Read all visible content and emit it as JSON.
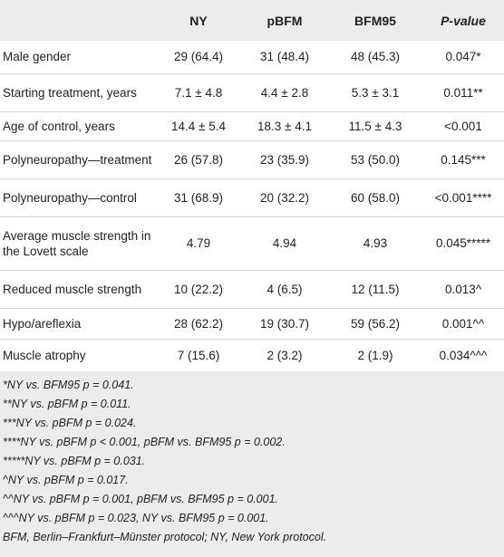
{
  "table": {
    "headers": [
      "",
      "NY",
      "pBFM",
      "BFM95",
      "P-value"
    ],
    "rows": [
      {
        "label": "Male gender",
        "ny": "29 (64.4)",
        "pbfm": "31 (48.4)",
        "bfm95": "48 (45.3)",
        "p": "0.047*"
      },
      {
        "label": "Starting treatment, years",
        "ny": "7.1 ± 4.8",
        "pbfm": "4.4 ± 2.8",
        "bfm95": "5.3 ± 3.1",
        "p": "0.011**"
      },
      {
        "label": "Age of control, years",
        "ny": "14.4 ± 5.4",
        "pbfm": "18.3 ± 4.1",
        "bfm95": "11.5 ± 4.3",
        "p": "<0.001"
      },
      {
        "label": "Polyneuropathy—treatment",
        "ny": "26 (57.8)",
        "pbfm": "23 (35.9)",
        "bfm95": "53 (50.0)",
        "p": "0.145***"
      },
      {
        "label": "Polyneuropathy—control",
        "ny": "31 (68.9)",
        "pbfm": "20 (32.2)",
        "bfm95": "60 (58.0)",
        "p": "<0.001****"
      },
      {
        "label": "Average muscle strength in the Lovett scale",
        "ny": "4.79",
        "pbfm": "4.94",
        "bfm95": "4.93",
        "p": "0.045*****"
      },
      {
        "label": "Reduced muscle strength",
        "ny": "10 (22.2)",
        "pbfm": "4 (6.5)",
        "bfm95": "12 (11.5)",
        "p": "0.013^"
      },
      {
        "label": "Hypo/areflexia",
        "ny": "28 (62.2)",
        "pbfm": "19 (30.7)",
        "bfm95": "59 (56.2)",
        "p": "0.001^^"
      },
      {
        "label": "Muscle atrophy",
        "ny": "7 (15.6)",
        "pbfm": "2 (3.2)",
        "bfm95": "2 (1.9)",
        "p": "0.034^^^"
      }
    ]
  },
  "footnotes": [
    "*NY vs. BFM95 p = 0.041.",
    "**NY vs. pBFM p = 0.011.",
    "***NY vs. pBFM p = 0.024.",
    "****NY vs. pBFM p < 0.001, pBFM vs. BFM95 p = 0.002.",
    "*****NY vs. pBFM p = 0.031.",
    "^NY vs. pBFM p = 0.017.",
    "^^NY vs. pBFM p = 0.001, pBFM vs. BFM95 p = 0.001.",
    "^^^NY vs. pBFM p = 0.023, NY vs. BFM95 p = 0.001.",
    "BFM, Berlin–Frankfurt–Münster protocol; NY, New York protocol."
  ]
}
